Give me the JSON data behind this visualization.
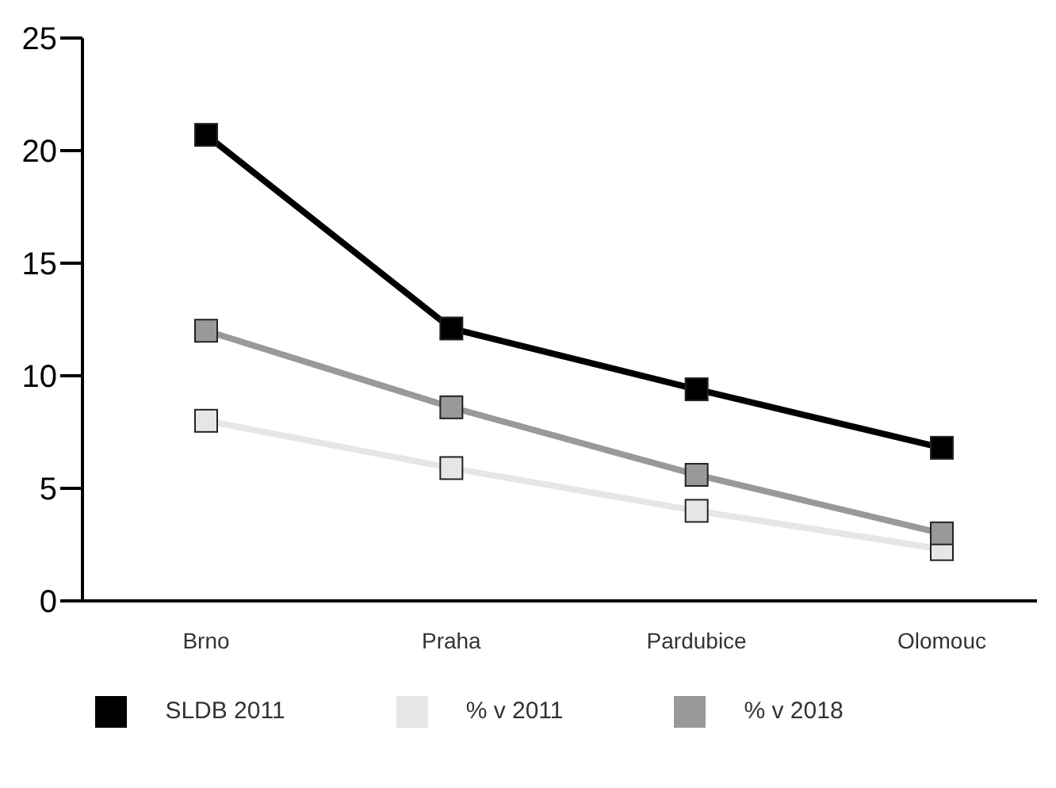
{
  "chart_data": {
    "type": "line",
    "categories": [
      "Brno",
      "Praha",
      "Pardubice",
      "Olomouc"
    ],
    "series": [
      {
        "name": "SLDB 2011",
        "color": "#000000",
        "values": [
          20.7,
          12.1,
          9.4,
          6.8
        ]
      },
      {
        "name": "% v 2011",
        "color": "#e6e6e6",
        "values": [
          8.0,
          5.9,
          4.0,
          2.3
        ]
      },
      {
        "name": "% v 2018",
        "color": "#999999",
        "values": [
          12.0,
          8.6,
          5.6,
          3.0
        ]
      }
    ],
    "ylim": [
      0,
      25
    ],
    "yticks": [
      0,
      5,
      10,
      15,
      20,
      25
    ],
    "grid": false,
    "legend": "bottom",
    "marker": "square",
    "line_style": "solid"
  }
}
